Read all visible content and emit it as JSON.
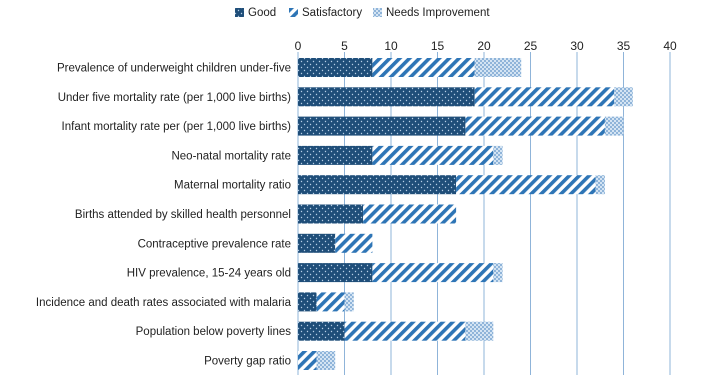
{
  "chart_data": {
    "type": "bar",
    "orientation": "horizontal",
    "stacked": true,
    "categories": [
      "Prevalence of underweight children under-five",
      "Under five mortality rate (per 1,000 live births)",
      "Infant mortality rate per (per 1,000 live births)",
      "Neo-natal mortality rate",
      "Maternal mortality ratio",
      "Births attended by skilled health personnel",
      "Contraceptive prevalence rate",
      "HIV prevalence, 15-24 years old",
      "Incidence and death rates associated with malaria",
      "Population below poverty lines",
      "Poverty gap ratio"
    ],
    "series": [
      {
        "name": "Good",
        "values": [
          8,
          19,
          18,
          8,
          17,
          7,
          4,
          8,
          2,
          5,
          0
        ]
      },
      {
        "name": "Satisfactory",
        "values": [
          11,
          15,
          15,
          13,
          15,
          10,
          4,
          13,
          3,
          13,
          2
        ]
      },
      {
        "name": "Needs Improvement",
        "values": [
          5,
          2,
          2,
          1,
          1,
          0,
          0,
          1,
          1,
          3,
          2
        ]
      }
    ],
    "xlim": [
      0,
      40
    ],
    "x_ticks": [
      "0",
      "5",
      "10",
      "15",
      "20",
      "25",
      "30",
      "35",
      "40"
    ],
    "x_axis_position": "top",
    "grid": true,
    "legend_position": "top",
    "colors": {
      "good": "#1f4e79",
      "satisfactory": "#2e75b6",
      "needs_improvement": "#9dc3e6",
      "grid": "#8fb4d9"
    }
  }
}
